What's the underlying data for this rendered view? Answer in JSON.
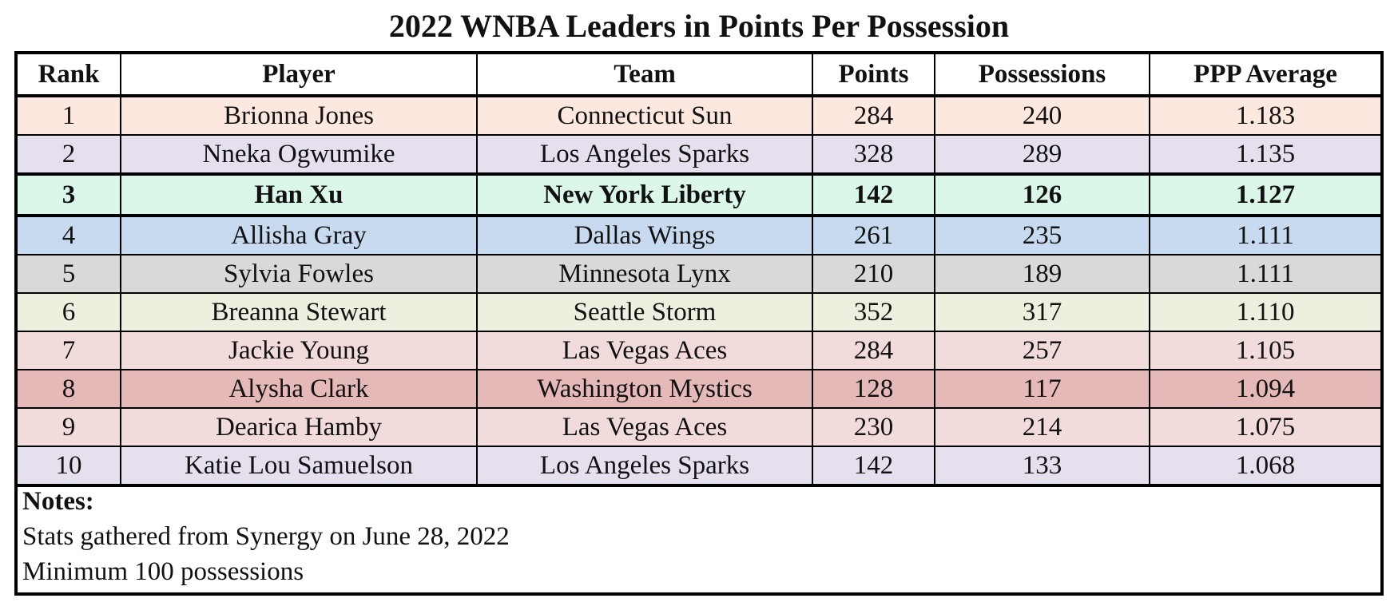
{
  "title": "2022 WNBA Leaders in Points Per Possession",
  "chart_data": {
    "type": "table",
    "title": "2022 WNBA Leaders in Points Per Possession",
    "columns": [
      "Rank",
      "Player",
      "Team",
      "Points",
      "Possessions",
      "PPP Average"
    ],
    "rows": [
      {
        "rank": "1",
        "player": "Brionna Jones",
        "team": "Connecticut Sun",
        "points": "284",
        "possessions": "240",
        "ppp": "1.183",
        "color": "#fce8de",
        "bold": false
      },
      {
        "rank": "2",
        "player": "Nneka Ogwumike",
        "team": "Los Angeles Sparks",
        "points": "328",
        "possessions": "289",
        "ppp": "1.135",
        "color": "#e6e0ee",
        "bold": false
      },
      {
        "rank": "3",
        "player": "Han Xu",
        "team": "New York Liberty",
        "points": "142",
        "possessions": "126",
        "ppp": "1.127",
        "color": "#daf7ea",
        "bold": true
      },
      {
        "rank": "4",
        "player": "Allisha Gray",
        "team": "Dallas Wings",
        "points": "261",
        "possessions": "235",
        "ppp": "1.111",
        "color": "#c8daf0",
        "bold": false
      },
      {
        "rank": "5",
        "player": "Sylvia Fowles",
        "team": "Minnesota Lynx",
        "points": "210",
        "possessions": "189",
        "ppp": "1.111",
        "color": "#d9d9d9",
        "bold": false
      },
      {
        "rank": "6",
        "player": "Breanna Stewart",
        "team": "Seattle Storm",
        "points": "352",
        "possessions": "317",
        "ppp": "1.110",
        "color": "#ebf1de",
        "bold": false
      },
      {
        "rank": "7",
        "player": "Jackie Young",
        "team": "Las Vegas Aces",
        "points": "284",
        "possessions": "257",
        "ppp": "1.105",
        "color": "#f1dcdb",
        "bold": false
      },
      {
        "rank": "8",
        "player": "Alysha Clark",
        "team": "Washington Mystics",
        "points": "128",
        "possessions": "117",
        "ppp": "1.094",
        "color": "#e5b9b7",
        "bold": false
      },
      {
        "rank": "9",
        "player": "Dearica Hamby",
        "team": "Las Vegas Aces",
        "points": "230",
        "possessions": "214",
        "ppp": "1.075",
        "color": "#f1dcdb",
        "bold": false
      },
      {
        "rank": "10",
        "player": "Katie Lou Samuelson",
        "team": "Los Angeles Sparks",
        "points": "142",
        "possessions": "133",
        "ppp": "1.068",
        "color": "#e6e0ee",
        "bold": false
      }
    ]
  },
  "notes": {
    "heading": "Notes:",
    "lines": [
      "Stats gathered from Synergy on June 28, 2022",
      "Minimum 100 possessions"
    ]
  }
}
